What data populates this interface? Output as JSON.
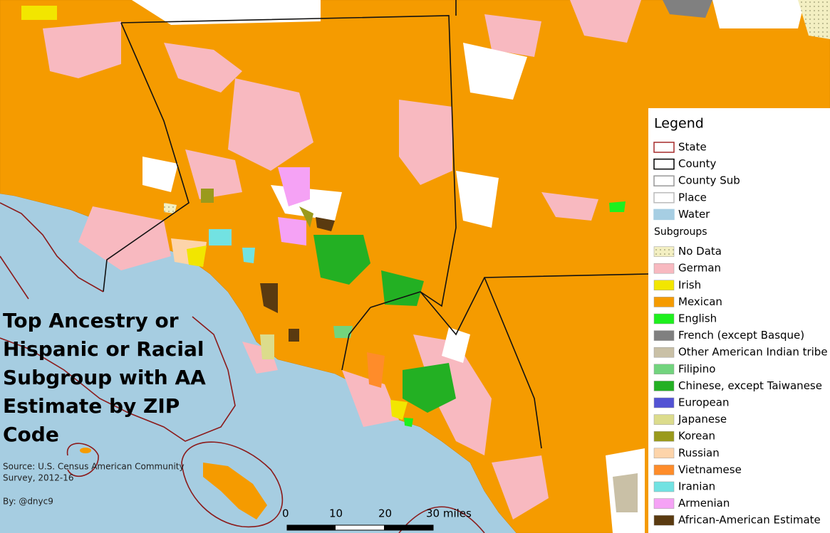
{
  "title": [
    "Top Ancestry or",
    "Hispanic or Racial",
    "Subgroup with AA",
    "Estimate by ZIP",
    "Code"
  ],
  "source": [
    "Source: U.S. Census American Community",
    "Survey, 2012-16"
  ],
  "byline": "By: @dnyc9",
  "scale": [
    "0",
    "10",
    "20",
    "30 miles"
  ],
  "legend": {
    "title": "Legend",
    "boundaries": [
      {
        "label": "State",
        "fill": "#ffffff",
        "stroke": "#a52a2a"
      },
      {
        "label": "County",
        "fill": "#ffffff",
        "stroke": "#000000"
      },
      {
        "label": "County Sub",
        "fill": "#ffffff",
        "stroke": "#999999"
      },
      {
        "label": "Place",
        "fill": "#ffffff",
        "stroke": "#bbbbbb"
      },
      {
        "label": "Water",
        "fill": "#a6cee3",
        "stroke": "#a6cee3"
      }
    ],
    "subgroups_title": "Subgroups",
    "subgroups": [
      {
        "label": "No Data",
        "color": "#f3efc2"
      },
      {
        "label": "German",
        "color": "#f8b9c0"
      },
      {
        "label": "Irish",
        "color": "#f2e600"
      },
      {
        "label": "Mexican",
        "color": "#f59b00"
      },
      {
        "label": "English",
        "color": "#1ef01e"
      },
      {
        "label": "French (except Basque)",
        "color": "#808080"
      },
      {
        "label": "Other American Indian tribe",
        "color": "#c9c0a6"
      },
      {
        "label": "Filipino",
        "color": "#72d47e"
      },
      {
        "label": "Chinese, except Taiwanese",
        "color": "#23b023"
      },
      {
        "label": "European",
        "color": "#5353d4"
      },
      {
        "label": "Japanese",
        "color": "#dcdc8c"
      },
      {
        "label": "Korean",
        "color": "#9a9a1c"
      },
      {
        "label": "Russian",
        "color": "#fdd4aa"
      },
      {
        "label": "Vietnamese",
        "color": "#ff8c2a"
      },
      {
        "label": "Iranian",
        "color": "#72e2e2"
      },
      {
        "label": "Armenian",
        "color": "#f5a2f5"
      },
      {
        "label": "African-American Estimate",
        "color": "#5a3a10"
      }
    ]
  }
}
